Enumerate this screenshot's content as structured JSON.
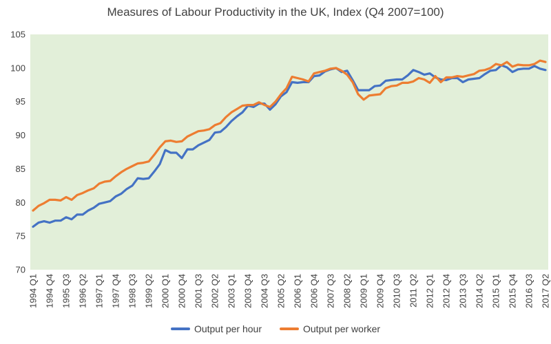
{
  "chart_data": {
    "type": "line",
    "title": "Measures of Labour Productivity in the UK, Index (Q4 2007=100)",
    "xlabel": "",
    "ylabel": "",
    "ylim": [
      70,
      105
    ],
    "yticks": [
      70,
      75,
      80,
      85,
      90,
      95,
      100,
      105
    ],
    "grid": false,
    "legend": "bottom",
    "plot_background": "#e2efd9",
    "x_tick_labels": [
      "1994 Q1",
      "1994 Q4",
      "1995 Q3",
      "1996 Q2",
      "1997 Q1",
      "1997 Q4",
      "1998 Q3",
      "1999 Q2",
      "2000 Q1",
      "2000 Q4",
      "2001 Q3",
      "2002 Q2",
      "2003 Q1",
      "2003 Q4",
      "2004 Q3",
      "2005 Q2",
      "2006 Q1",
      "2006 Q4",
      "2007 Q3",
      "2008 Q2",
      "2009 Q1",
      "2009 Q4",
      "2010 Q3",
      "2011 Q2",
      "2012 Q1",
      "2012 Q4",
      "2013 Q3",
      "2014 Q2",
      "2015 Q1",
      "2015 Q4",
      "2016 Q3",
      "2017 Q2"
    ],
    "x": [
      "1994 Q1",
      "1994 Q2",
      "1994 Q3",
      "1994 Q4",
      "1995 Q1",
      "1995 Q2",
      "1995 Q3",
      "1995 Q4",
      "1996 Q1",
      "1996 Q2",
      "1996 Q3",
      "1996 Q4",
      "1997 Q1",
      "1997 Q2",
      "1997 Q3",
      "1997 Q4",
      "1998 Q1",
      "1998 Q2",
      "1998 Q3",
      "1998 Q4",
      "1999 Q1",
      "1999 Q2",
      "1999 Q3",
      "1999 Q4",
      "2000 Q1",
      "2000 Q2",
      "2000 Q3",
      "2000 Q4",
      "2001 Q1",
      "2001 Q2",
      "2001 Q3",
      "2001 Q4",
      "2002 Q1",
      "2002 Q2",
      "2002 Q3",
      "2002 Q4",
      "2003 Q1",
      "2003 Q2",
      "2003 Q3",
      "2003 Q4",
      "2004 Q1",
      "2004 Q2",
      "2004 Q3",
      "2004 Q4",
      "2005 Q1",
      "2005 Q2",
      "2005 Q3",
      "2005 Q4",
      "2006 Q1",
      "2006 Q2",
      "2006 Q3",
      "2006 Q4",
      "2007 Q1",
      "2007 Q2",
      "2007 Q3",
      "2007 Q4",
      "2008 Q1",
      "2008 Q2",
      "2008 Q3",
      "2008 Q4",
      "2009 Q1",
      "2009 Q2",
      "2009 Q3",
      "2009 Q4",
      "2010 Q1",
      "2010 Q2",
      "2010 Q3",
      "2010 Q4",
      "2011 Q1",
      "2011 Q2",
      "2011 Q3",
      "2011 Q4",
      "2012 Q1",
      "2012 Q2",
      "2012 Q3",
      "2012 Q4",
      "2013 Q1",
      "2013 Q2",
      "2013 Q3",
      "2013 Q4",
      "2014 Q1",
      "2014 Q2",
      "2014 Q3",
      "2014 Q4",
      "2015 Q1",
      "2015 Q2",
      "2015 Q3",
      "2015 Q4",
      "2016 Q1",
      "2016 Q2",
      "2016 Q3",
      "2016 Q4",
      "2017 Q1",
      "2017 Q2"
    ],
    "series": [
      {
        "name": "Output per hour",
        "color": "#4472c4",
        "values": [
          76.4,
          77.0,
          77.2,
          77.0,
          77.3,
          77.3,
          77.8,
          77.5,
          78.2,
          78.2,
          78.8,
          79.2,
          79.8,
          80.0,
          80.2,
          80.9,
          81.3,
          82.0,
          82.5,
          83.6,
          83.5,
          83.6,
          84.6,
          85.7,
          87.8,
          87.4,
          87.4,
          86.6,
          87.9,
          87.9,
          88.5,
          88.9,
          89.3,
          90.4,
          90.5,
          91.2,
          92.1,
          92.8,
          93.4,
          94.4,
          94.2,
          94.7,
          94.7,
          93.8,
          94.6,
          95.8,
          96.4,
          97.9,
          97.8,
          97.9,
          97.9,
          98.8,
          98.9,
          99.5,
          99.8,
          100.0,
          99.4,
          99.6,
          98.2,
          96.7,
          96.7,
          96.7,
          97.3,
          97.4,
          98.1,
          98.2,
          98.3,
          98.3,
          98.9,
          99.7,
          99.4,
          99.0,
          99.2,
          98.6,
          98.3,
          98.2,
          98.5,
          98.5,
          97.9,
          98.3,
          98.4,
          98.5,
          99.1,
          99.6,
          99.7,
          100.4,
          100.1,
          99.4,
          99.8,
          99.9,
          99.9,
          100.3,
          99.9,
          99.7
        ]
      },
      {
        "name": "Output per worker",
        "color": "#ed7d31",
        "values": [
          78.8,
          79.5,
          79.9,
          80.4,
          80.4,
          80.3,
          80.8,
          80.4,
          81.1,
          81.4,
          81.8,
          82.1,
          82.8,
          83.1,
          83.2,
          83.9,
          84.5,
          85.0,
          85.4,
          85.8,
          85.9,
          86.1,
          87.1,
          88.2,
          89.1,
          89.2,
          89.0,
          89.1,
          89.8,
          90.2,
          90.6,
          90.7,
          90.9,
          91.5,
          91.8,
          92.7,
          93.4,
          93.9,
          94.4,
          94.5,
          94.5,
          94.9,
          94.5,
          94.2,
          95.0,
          96.1,
          97.0,
          98.7,
          98.5,
          98.3,
          98.0,
          99.2,
          99.4,
          99.6,
          99.9,
          100.0,
          99.6,
          99.0,
          97.9,
          96.1,
          95.3,
          95.9,
          96.0,
          96.1,
          97.0,
          97.3,
          97.4,
          97.8,
          97.8,
          98.0,
          98.5,
          98.3,
          97.8,
          98.8,
          97.9,
          98.6,
          98.6,
          98.8,
          98.7,
          98.9,
          99.1,
          99.6,
          99.7,
          100.0,
          100.6,
          100.4,
          100.9,
          100.2,
          100.5,
          100.4,
          100.4,
          100.6,
          101.1,
          100.9
        ]
      }
    ]
  }
}
